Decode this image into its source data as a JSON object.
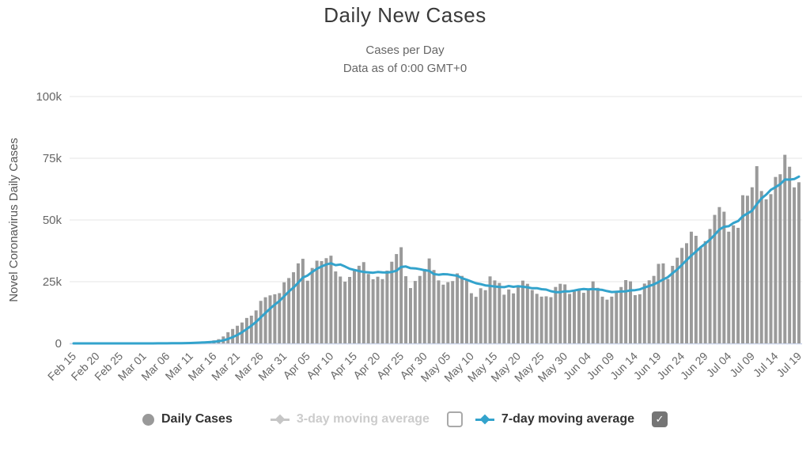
{
  "header": {
    "title": "Daily New Cases",
    "subtitle_line1": "Cases per Day",
    "subtitle_line2": "Data as of 0:00 GMT+0"
  },
  "legend": {
    "daily_cases_label": "Daily Cases",
    "ma3_label": "3-day moving average",
    "ma7_label": "7-day moving average",
    "ma3_checkbox_checked": false,
    "ma7_checkbox_checked": true,
    "checkmark_glyph": "✓"
  },
  "colors": {
    "bars": "#9a9a9a",
    "ma7_line": "#33a3cc",
    "disabled_legend": "#c6c6c6",
    "grid": "#e6e6e6",
    "axis_line": "#ccd6eb",
    "tick_text": "#666666",
    "y_axis_title_text": "#555555",
    "title_text": "#3a3a3a"
  },
  "chart_data": {
    "type": "bar",
    "title": "Daily New Cases",
    "subtitle": "Cases per Day — Data as of 0:00 GMT+0",
    "xlabel": "",
    "ylabel": "Novel Coronavirus Daily Cases",
    "ylim": [
      0,
      100000
    ],
    "ytick_values": [
      0,
      25000,
      50000,
      75000,
      100000
    ],
    "ytick_labels": [
      "0",
      "25k",
      "50k",
      "75k",
      "100k"
    ],
    "grid": "horizontal",
    "legend_position": "bottom",
    "x_start": "Feb 15",
    "x_end": "Jul 19",
    "x_tick_every": 5,
    "x_tick_labels": [
      "Feb 15",
      "Feb 20",
      "Feb 25",
      "Mar 01",
      "Mar 06",
      "Mar 11",
      "Mar 16",
      "Mar 21",
      "Mar 26",
      "Mar 31",
      "Apr 05",
      "Apr 10",
      "Apr 15",
      "Apr 20",
      "Apr 25",
      "Apr 30",
      "May 05",
      "May 10",
      "May 15",
      "May 20",
      "May 25",
      "May 30",
      "Jun 04",
      "Jun 09",
      "Jun 14",
      "Jun 19",
      "Jun 24",
      "Jun 29",
      "Jul 04",
      "Jul 09",
      "Jul 14",
      "Jul 19"
    ],
    "series": [
      {
        "name": "Daily Cases",
        "type": "bar",
        "color": "#9a9a9a",
        "visible": true,
        "values": [
          1,
          0,
          2,
          1,
          3,
          1,
          19,
          0,
          3,
          0,
          18,
          4,
          3,
          8,
          6,
          23,
          20,
          31,
          68,
          45,
          105,
          95,
          122,
          183,
          292,
          362,
          503,
          614,
          773,
          823,
          1224,
          1715,
          2805,
          4534,
          5836,
          7143,
          8459,
          10301,
          11236,
          13355,
          17224,
          18691,
          19452,
          19913,
          20353,
          24742,
          26473,
          28819,
          32425,
          34272,
          25398,
          30561,
          33510,
          33323,
          34533,
          35527,
          29144,
          27078,
          25023,
          26922,
          30003,
          31451,
          32922,
          28123,
          25995,
          27014,
          26043,
          29468,
          33091,
          36188,
          38958,
          27219,
          22412,
          25289,
          27327,
          30158,
          34406,
          29744,
          25512,
          23792,
          24798,
          25253,
          28369,
          27348,
          25612,
          20329,
          18873,
          22337,
          21551,
          27143,
          25508,
          24487,
          19731,
          21841,
          20254,
          23285,
          25434,
          24147,
          21603,
          20087,
          18948,
          19072,
          18721,
          22858,
          24146,
          23901,
          20058,
          21040,
          21750,
          20483,
          21872,
          25130,
          22512,
          18934,
          17728,
          18941,
          21148,
          22837,
          25640,
          25144,
          19543,
          19913,
          24235,
          25546,
          27345,
          32218,
          32411,
          26079,
          31402,
          34720,
          38672,
          40588,
          45255,
          43581,
          38673,
          41423,
          46329,
          52059,
          55220,
          53349,
          45255,
          47824,
          46813,
          60021,
          59826,
          63247,
          71787,
          61719,
          58349,
          60469,
          67417,
          68518,
          76403,
          71558,
          63207,
          65279
        ]
      },
      {
        "name": "3-day moving average",
        "type": "line",
        "color": "#c6c6c6",
        "visible": false,
        "window": 3
      },
      {
        "name": "7-day moving average",
        "type": "line",
        "color": "#33a3cc",
        "visible": true,
        "window": 7,
        "derived_from": "Daily Cases"
      }
    ]
  }
}
